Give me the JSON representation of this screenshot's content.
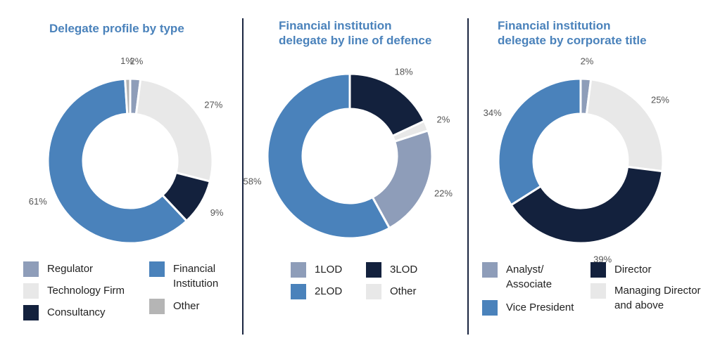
{
  "colors": {
    "title": "#4a82bb",
    "divider": "#1a2540",
    "label": "#555555"
  },
  "chart_data": [
    {
      "type": "pie",
      "title": "Delegate profile by type",
      "slices": [
        {
          "label": "Regulator",
          "value": 2,
          "display": "2%",
          "color": "#8e9db9"
        },
        {
          "label": "Technology Firm",
          "value": 27,
          "display": "27%",
          "color": "#e8e8e8"
        },
        {
          "label": "Consultancy",
          "value": 9,
          "display": "9%",
          "color": "#13213d"
        },
        {
          "label": "Financial Institution",
          "value": 61,
          "display": "61%",
          "color": "#4a82bb"
        },
        {
          "label": "Other",
          "value": 1,
          "display": "1%",
          "color": "#b5b5b5"
        }
      ],
      "legend": [
        {
          "label": "Regulator",
          "color": "#8e9db9"
        },
        {
          "label": "Technology Firm",
          "color": "#e8e8e8"
        },
        {
          "label": "Consultancy",
          "color": "#13213d"
        },
        {
          "label": "Financial\nInstitution",
          "color": "#4a82bb"
        },
        {
          "label": "Other",
          "color": "#b5b5b5"
        }
      ]
    },
    {
      "type": "pie",
      "title": "Financial institution\ndelegate by line of defence",
      "slices": [
        {
          "label": "3LOD",
          "value": 18,
          "display": "18%",
          "color": "#13213d"
        },
        {
          "label": "Other",
          "value": 2,
          "display": "2%",
          "color": "#e8e8e8"
        },
        {
          "label": "1LOD",
          "value": 22,
          "display": "22%",
          "color": "#8e9db9"
        },
        {
          "label": "2LOD",
          "value": 58,
          "display": "58%",
          "color": "#4a82bb"
        }
      ],
      "legend": [
        {
          "label": "1LOD",
          "color": "#8e9db9"
        },
        {
          "label": "2LOD",
          "color": "#4a82bb"
        },
        {
          "label": "3LOD",
          "color": "#13213d"
        },
        {
          "label": "Other",
          "color": "#e8e8e8"
        }
      ]
    },
    {
      "type": "pie",
      "title": "Financial institution\ndelegate by corporate title",
      "slices": [
        {
          "label": "Analyst/ Associate",
          "value": 2,
          "display": "2%",
          "color": "#8e9db9"
        },
        {
          "label": "Managing Director and above",
          "value": 25,
          "display": "25%",
          "color": "#e8e8e8"
        },
        {
          "label": "Director",
          "value": 39,
          "display": "39%",
          "color": "#13213d"
        },
        {
          "label": "Vice President",
          "value": 34,
          "display": "34%",
          "color": "#4a82bb"
        }
      ],
      "legend": [
        {
          "label": "Analyst/\nAssociate",
          "color": "#8e9db9"
        },
        {
          "label": "Vice President",
          "color": "#4a82bb"
        },
        {
          "label": "Director",
          "color": "#13213d"
        },
        {
          "label": "Managing Director\nand above",
          "color": "#e8e8e8"
        }
      ]
    }
  ]
}
